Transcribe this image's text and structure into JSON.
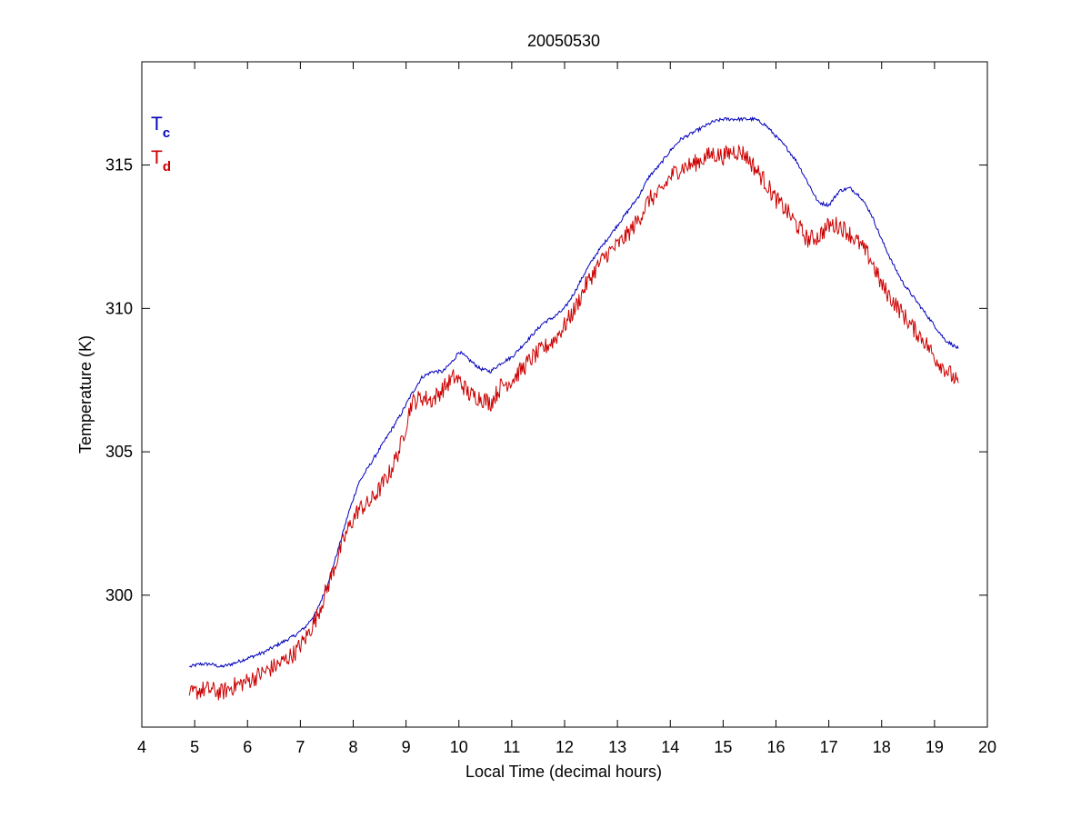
{
  "chart_data": {
    "type": "line",
    "title": "20050530",
    "xlabel": "Local Time (decimal hours)",
    "ylabel": "Temperature (K)",
    "xlim": [
      4,
      20
    ],
    "ylim": [
      295.4,
      318.6
    ],
    "xticks": [
      4,
      5,
      6,
      7,
      8,
      9,
      10,
      11,
      12,
      13,
      14,
      15,
      16,
      17,
      18,
      19,
      20
    ],
    "yticks": [
      300,
      305,
      310,
      315
    ],
    "grid": false,
    "legend_position": "top-left",
    "series": [
      {
        "name": "Tc",
        "label_main": "T",
        "label_sub": "c",
        "color": "#0000bb",
        "x": [
          4.9,
          5.1,
          5.3,
          5.5,
          5.7,
          6.0,
          6.3,
          6.6,
          6.9,
          7.1,
          7.3,
          7.5,
          7.7,
          7.9,
          8.1,
          8.3,
          8.5,
          8.7,
          8.9,
          9.1,
          9.3,
          9.5,
          9.7,
          9.9,
          10.0,
          10.2,
          10.4,
          10.6,
          10.8,
          11.0,
          11.2,
          11.4,
          11.6,
          11.8,
          12.0,
          12.2,
          12.4,
          12.6,
          12.8,
          13.0,
          13.2,
          13.4,
          13.6,
          13.8,
          14.0,
          14.2,
          14.4,
          14.6,
          14.8,
          15.0,
          15.2,
          15.4,
          15.6,
          15.8,
          16.0,
          16.2,
          16.4,
          16.6,
          16.8,
          17.0,
          17.2,
          17.4,
          17.6,
          17.8,
          18.0,
          18.2,
          18.4,
          18.6,
          18.8,
          19.0,
          19.2,
          19.45
        ],
        "y": [
          297.5,
          297.6,
          297.6,
          297.5,
          297.6,
          297.8,
          298.0,
          298.3,
          298.6,
          298.9,
          299.4,
          300.3,
          301.5,
          302.8,
          303.9,
          304.5,
          305.1,
          305.7,
          306.3,
          307.0,
          307.6,
          307.8,
          307.8,
          308.2,
          308.5,
          308.2,
          307.9,
          307.8,
          308.1,
          308.3,
          308.7,
          309.1,
          309.5,
          309.7,
          310.0,
          310.6,
          311.3,
          311.9,
          312.4,
          312.9,
          313.4,
          313.9,
          314.6,
          315.0,
          315.5,
          315.9,
          316.1,
          316.3,
          316.5,
          316.6,
          316.6,
          316.6,
          316.6,
          316.4,
          316.0,
          315.6,
          315.1,
          314.4,
          313.7,
          313.6,
          314.1,
          314.2,
          313.9,
          313.3,
          312.4,
          311.6,
          310.9,
          310.4,
          309.9,
          309.4,
          308.9,
          308.6
        ]
      },
      {
        "name": "Td",
        "label_main": "T",
        "label_sub": "d",
        "color": "#cc0000",
        "x": [
          4.9,
          5.1,
          5.3,
          5.5,
          5.7,
          6.0,
          6.3,
          6.6,
          6.9,
          7.1,
          7.3,
          7.5,
          7.7,
          7.9,
          8.1,
          8.3,
          8.5,
          8.7,
          8.9,
          9.1,
          9.3,
          9.5,
          9.7,
          9.9,
          10.0,
          10.2,
          10.4,
          10.6,
          10.8,
          11.0,
          11.2,
          11.4,
          11.6,
          11.8,
          12.0,
          12.2,
          12.4,
          12.6,
          12.8,
          13.0,
          13.2,
          13.4,
          13.6,
          13.8,
          14.0,
          14.2,
          14.4,
          14.6,
          14.8,
          15.0,
          15.2,
          15.4,
          15.6,
          15.8,
          16.0,
          16.2,
          16.4,
          16.6,
          16.8,
          17.0,
          17.2,
          17.4,
          17.6,
          17.8,
          18.0,
          18.2,
          18.4,
          18.6,
          18.8,
          19.0,
          19.2,
          19.45
        ],
        "y": [
          296.5,
          296.7,
          296.7,
          296.6,
          296.8,
          297.0,
          297.3,
          297.6,
          298.0,
          298.5,
          299.2,
          300.2,
          301.3,
          302.3,
          303.0,
          303.2,
          303.7,
          304.3,
          305.2,
          306.7,
          306.9,
          306.8,
          307.2,
          307.6,
          307.5,
          307.0,
          306.9,
          306.7,
          307.3,
          307.5,
          307.9,
          308.3,
          308.6,
          308.9,
          309.4,
          310.0,
          310.8,
          311.4,
          311.9,
          312.2,
          312.6,
          313.1,
          313.8,
          314.0,
          314.6,
          314.9,
          315.0,
          315.2,
          315.4,
          315.3,
          315.5,
          315.4,
          314.9,
          314.4,
          313.8,
          313.4,
          312.9,
          312.4,
          312.5,
          312.9,
          312.9,
          312.6,
          312.2,
          311.7,
          310.8,
          310.3,
          309.8,
          309.3,
          308.9,
          308.3,
          307.9,
          307.4
        ]
      }
    ]
  }
}
